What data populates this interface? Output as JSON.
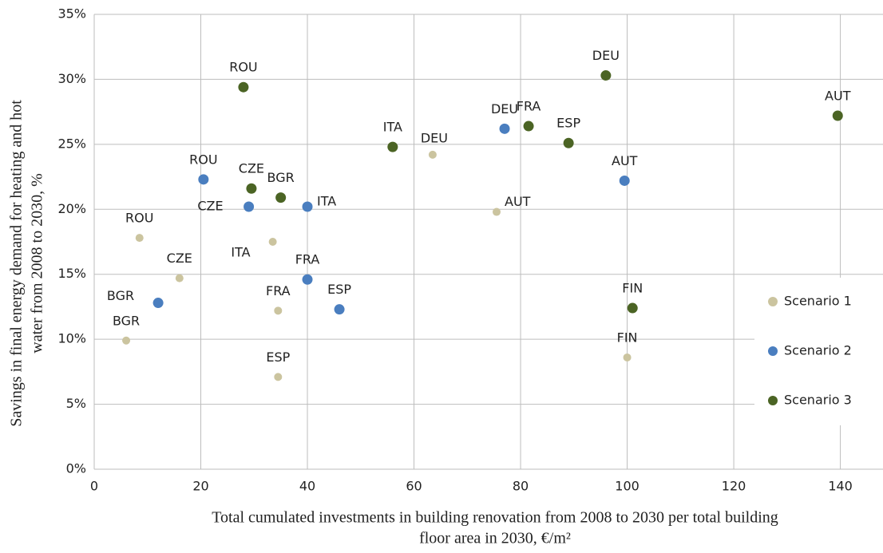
{
  "chart_data": {
    "type": "scatter",
    "xlabel": [
      "Total cumulated investments in building renovation from 2008 to 2030 per total building",
      "floor area in 2030, €/m²"
    ],
    "ylabel": [
      "Savings in final energy demand for heating and hot",
      "water from 2008 to 2030, %"
    ],
    "xlim": [
      0,
      148
    ],
    "xticks": [
      0,
      20,
      40,
      60,
      80,
      100,
      120,
      140
    ],
    "ylim": [
      0,
      35
    ],
    "yticks": [
      {
        "value": 0,
        "label": "0%"
      },
      {
        "value": 5,
        "label": "5%"
      },
      {
        "value": 10,
        "label": "10%"
      },
      {
        "value": 15,
        "label": "15%"
      },
      {
        "value": 20,
        "label": "20%"
      },
      {
        "value": 25,
        "label": "25%"
      },
      {
        "value": 30,
        "label": "30%"
      },
      {
        "value": 35,
        "label": "35%"
      }
    ],
    "grid": true,
    "legend": "right",
    "series": [
      {
        "name": "Scenario 1",
        "color": "#cbc49f",
        "labels": [
          "ROU",
          "CZE",
          "BGR",
          "ITA",
          "FRA",
          "ESP",
          "DEU",
          "AUT",
          "FIN"
        ],
        "x": [
          8.5,
          16,
          6,
          33.5,
          34.5,
          34.5,
          63.5,
          75.5,
          100
        ],
        "values": [
          17.8,
          14.7,
          9.9,
          17.5,
          12.2,
          7.1,
          24.2,
          19.8,
          8.6
        ]
      },
      {
        "name": "Scenario 2",
        "color": "#4a7ebf",
        "labels": [
          "ROU",
          "CZE",
          "ITA",
          "BGR",
          "FRA",
          "ESP",
          "DEU",
          "AUT"
        ],
        "x": [
          20.5,
          29,
          40,
          12,
          40,
          46,
          77,
          99.5
        ],
        "values": [
          22.3,
          20.2,
          20.2,
          12.8,
          14.6,
          12.3,
          26.2,
          22.2
        ]
      },
      {
        "name": "Scenario 3",
        "color": "#4b6424",
        "labels": [
          "ROU",
          "CZE",
          "BGR",
          "ITA",
          "DEU",
          "FRA",
          "ESP",
          "AUT",
          "FIN"
        ],
        "x": [
          28,
          29.5,
          35,
          56,
          96,
          81.5,
          89,
          139.5,
          101
        ],
        "values": [
          29.4,
          21.6,
          20.9,
          24.8,
          30.3,
          26.4,
          25.1,
          27.2,
          12.4
        ]
      }
    ]
  }
}
